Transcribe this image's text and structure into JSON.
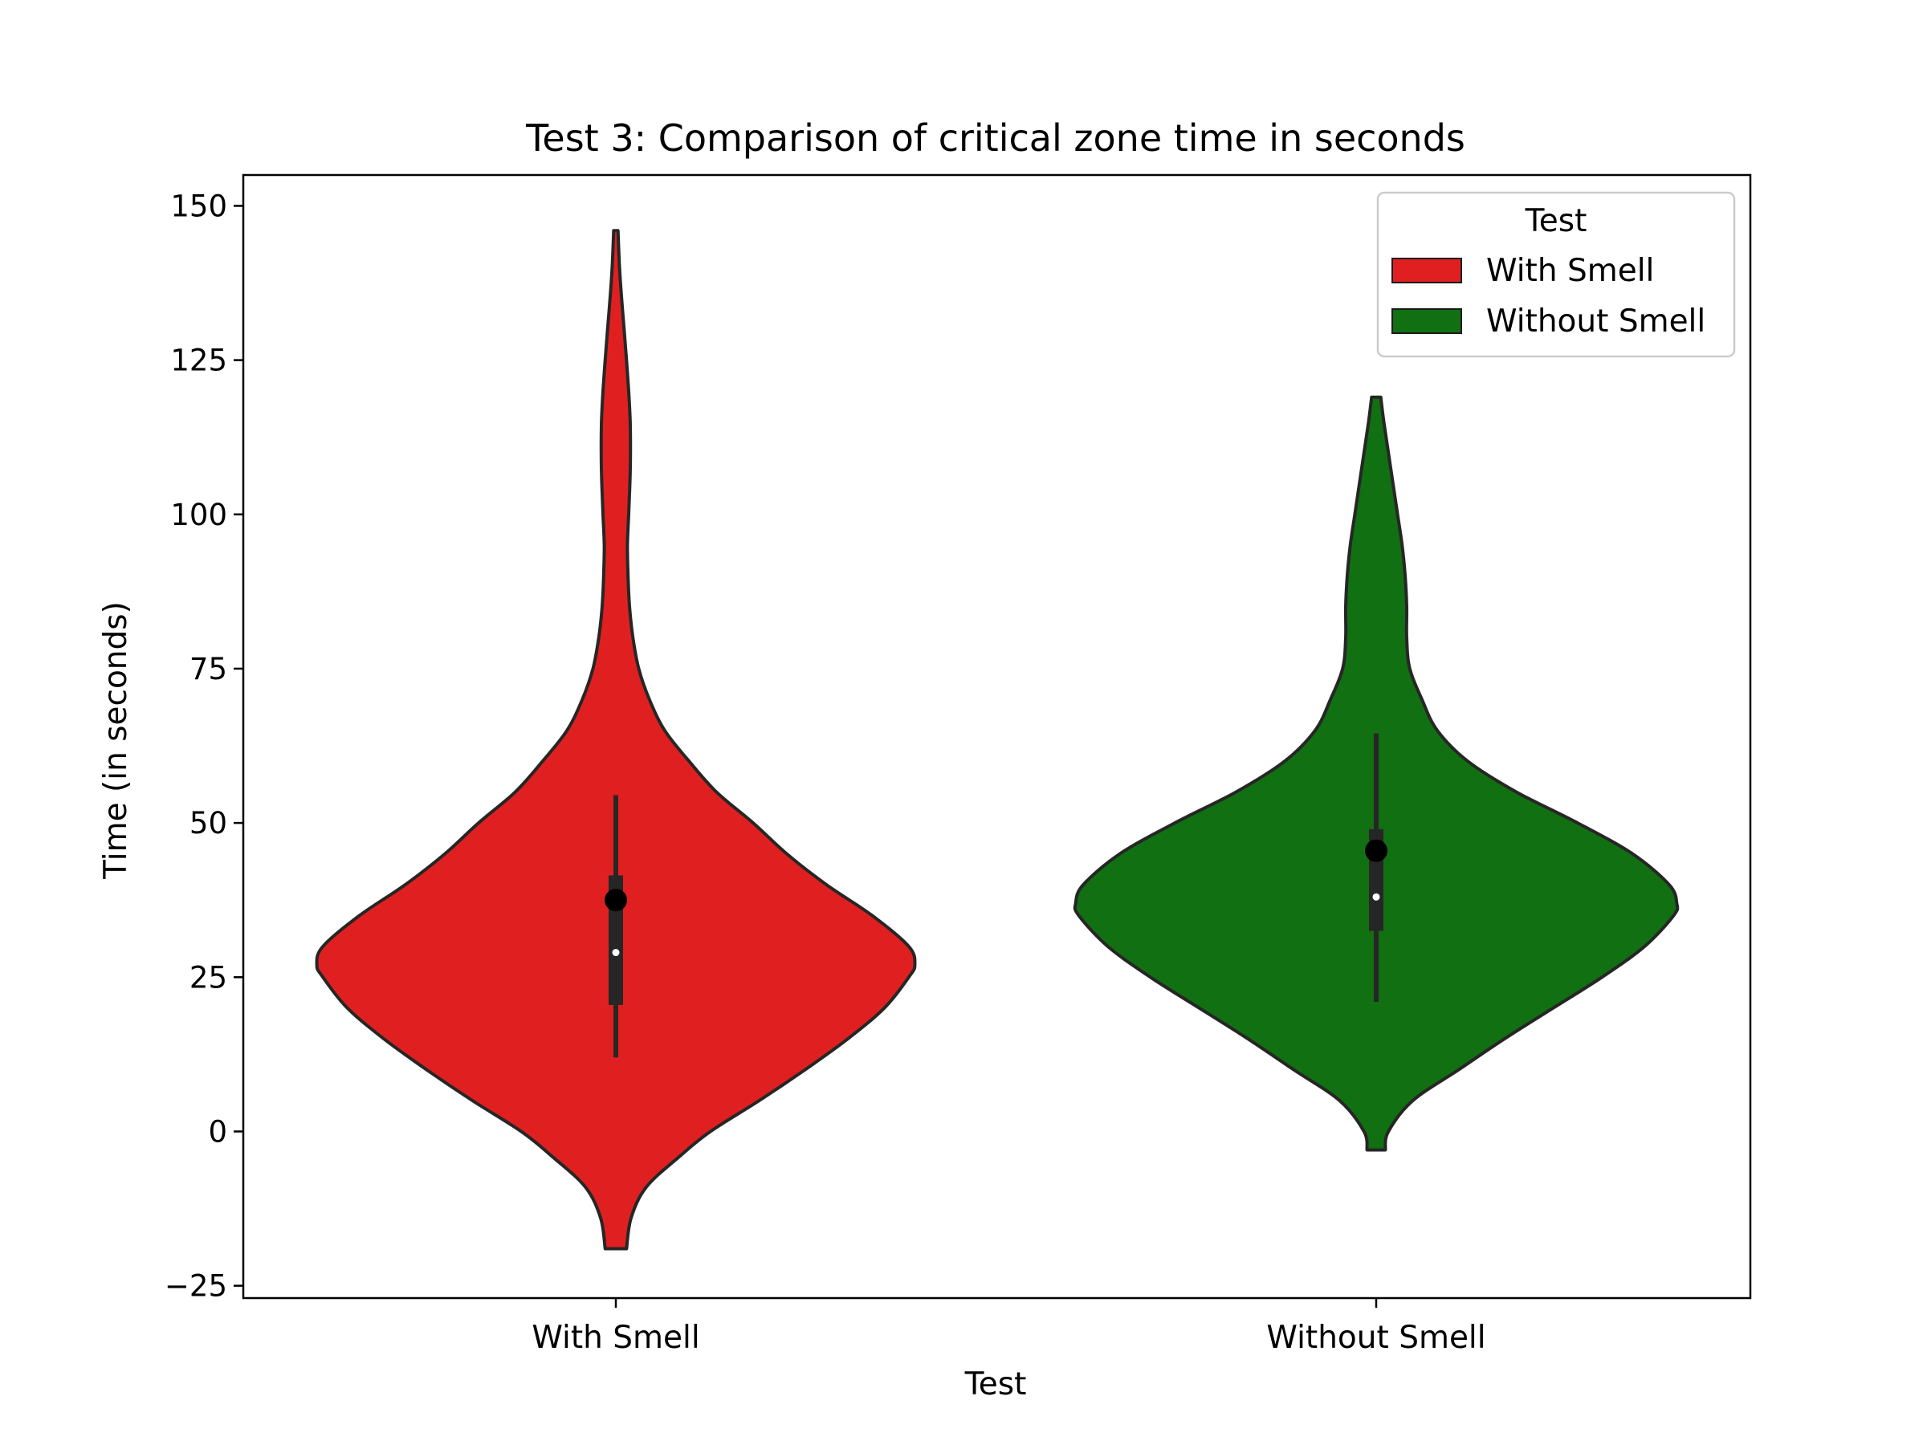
{
  "chart_data": {
    "type": "violin",
    "title": "Test 3: Comparison of critical zone time in seconds",
    "xlabel": "Test",
    "ylabel": "Time (in seconds)",
    "ylim": [
      -27,
      155
    ],
    "yticks": [
      -25,
      0,
      25,
      50,
      75,
      100,
      125,
      150
    ],
    "categories": [
      "With Smell",
      "Without Smell"
    ],
    "legend": {
      "title": "Test",
      "placement": "top-right",
      "entries": [
        "With Smell",
        "Without Smell"
      ]
    },
    "series": [
      {
        "name": "With Smell",
        "color": "#e02020",
        "range": [
          -19,
          146
        ],
        "box": {
          "q1": 20.5,
          "median": 29,
          "q3": 41.5,
          "whisker_low": 12,
          "whisker_high": 54.5
        },
        "mean": 37.5,
        "density": [
          [
            -19,
            0.035
          ],
          [
            -14,
            0.05
          ],
          [
            -9,
            0.1
          ],
          [
            -4,
            0.21
          ],
          [
            0,
            0.31
          ],
          [
            5,
            0.47
          ],
          [
            10,
            0.62
          ],
          [
            15,
            0.76
          ],
          [
            20,
            0.88
          ],
          [
            25,
            0.96
          ],
          [
            27,
            0.98
          ],
          [
            30,
            0.96
          ],
          [
            35,
            0.84
          ],
          [
            40,
            0.69
          ],
          [
            45,
            0.56
          ],
          [
            50,
            0.45
          ],
          [
            55,
            0.33
          ],
          [
            60,
            0.24
          ],
          [
            65,
            0.16
          ],
          [
            70,
            0.11
          ],
          [
            75,
            0.075
          ],
          [
            80,
            0.056
          ],
          [
            85,
            0.045
          ],
          [
            90,
            0.04
          ],
          [
            95,
            0.038
          ],
          [
            100,
            0.042
          ],
          [
            105,
            0.046
          ],
          [
            110,
            0.048
          ],
          [
            115,
            0.047
          ],
          [
            120,
            0.042
          ],
          [
            125,
            0.035
          ],
          [
            130,
            0.027
          ],
          [
            135,
            0.019
          ],
          [
            140,
            0.012
          ],
          [
            146,
            0.007
          ]
        ]
      },
      {
        "name": "Without Smell",
        "color": "#117011",
        "range": [
          -3,
          119
        ],
        "box": {
          "q1": 32.5,
          "median": 38,
          "q3": 49,
          "whisker_low": 21,
          "whisker_high": 64.5
        },
        "mean": 45.5,
        "density": [
          [
            -3,
            0.03
          ],
          [
            0,
            0.04
          ],
          [
            5,
            0.12
          ],
          [
            10,
            0.27
          ],
          [
            15,
            0.42
          ],
          [
            20,
            0.58
          ],
          [
            25,
            0.74
          ],
          [
            30,
            0.88
          ],
          [
            35,
            0.975
          ],
          [
            37,
            0.985
          ],
          [
            40,
            0.96
          ],
          [
            45,
            0.84
          ],
          [
            50,
            0.66
          ],
          [
            55,
            0.46
          ],
          [
            60,
            0.3
          ],
          [
            65,
            0.2
          ],
          [
            70,
            0.15
          ],
          [
            75,
            0.11
          ],
          [
            80,
            0.1
          ],
          [
            85,
            0.1
          ],
          [
            90,
            0.095
          ],
          [
            95,
            0.085
          ],
          [
            100,
            0.07
          ],
          [
            105,
            0.055
          ],
          [
            110,
            0.04
          ],
          [
            115,
            0.025
          ],
          [
            119,
            0.015
          ]
        ]
      }
    ]
  }
}
